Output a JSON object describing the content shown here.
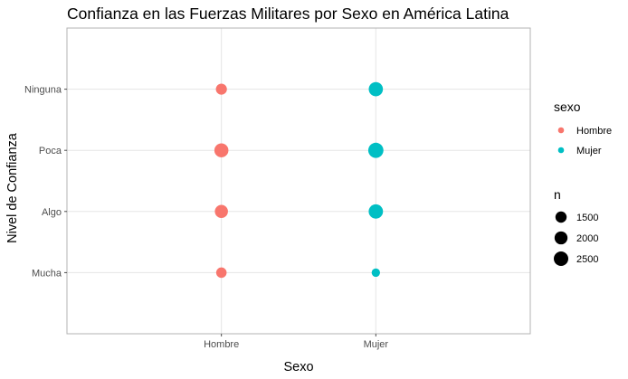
{
  "chart_data": {
    "type": "scatter",
    "title": "Confianza en las Fuerzas Militares por Sexo en América Latina",
    "xlabel": "Sexo",
    "ylabel": "Nivel de Confianza",
    "x_categories": [
      "Hombre",
      "Mujer"
    ],
    "y_categories": [
      "Mucha",
      "Algo",
      "Poca",
      "Ninguna"
    ],
    "grid": true,
    "legend_position": "right",
    "color_legend": {
      "title": "sexo",
      "entries": [
        {
          "label": "Hombre",
          "color": "#F8766D"
        },
        {
          "label": "Mujer",
          "color": "#00BFC4"
        }
      ]
    },
    "size_legend": {
      "title": "n",
      "entries": [
        {
          "label": "1500",
          "value": 1500
        },
        {
          "label": "2000",
          "value": 2000
        },
        {
          "label": "2500",
          "value": 2500
        }
      ]
    },
    "points": [
      {
        "x": "Hombre",
        "y": "Ninguna",
        "n": 1450,
        "series": "Hombre"
      },
      {
        "x": "Hombre",
        "y": "Poca",
        "n": 2350,
        "series": "Hombre"
      },
      {
        "x": "Hombre",
        "y": "Algo",
        "n": 2050,
        "series": "Hombre"
      },
      {
        "x": "Hombre",
        "y": "Mucha",
        "n": 1300,
        "series": "Hombre"
      },
      {
        "x": "Mujer",
        "y": "Ninguna",
        "n": 2400,
        "series": "Mujer"
      },
      {
        "x": "Mujer",
        "y": "Poca",
        "n": 2750,
        "series": "Mujer"
      },
      {
        "x": "Mujer",
        "y": "Algo",
        "n": 2450,
        "series": "Mujer"
      },
      {
        "x": "Mujer",
        "y": "Mucha",
        "n": 850,
        "series": "Mujer"
      }
    ]
  }
}
